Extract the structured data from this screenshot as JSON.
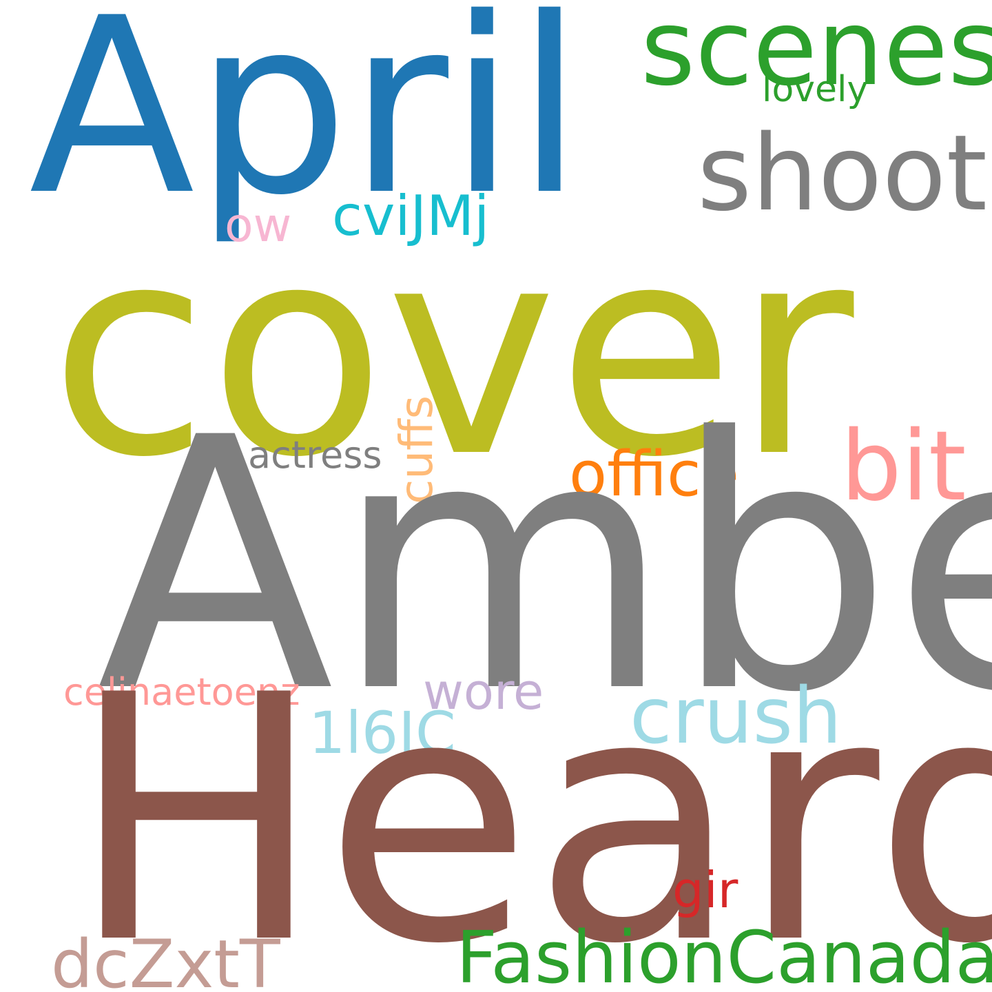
{
  "background": "#ffffff",
  "words": {
    "april": {
      "text": "April",
      "color": "#1f77b4"
    },
    "scenes": {
      "text": "scenes",
      "color": "#2ca02c"
    },
    "lovely": {
      "text": "lovely",
      "color": "#2ca02c"
    },
    "shoot": {
      "text": "shoot",
      "color": "#7f7f7f"
    },
    "cvijmj": {
      "text": "cviJMj",
      "color": "#17becf"
    },
    "ow": {
      "text": "ow",
      "color": "#f7b6d2"
    },
    "cover": {
      "text": "cover",
      "color": "#bcbd22"
    },
    "cuffs": {
      "text": "cuffs",
      "color": "#ffbb78"
    },
    "actress": {
      "text": "actress",
      "color": "#7f7f7f"
    },
    "office": {
      "text": "office",
      "color": "#ff7f0e"
    },
    "bit": {
      "text": "bit",
      "color": "#ff9896"
    },
    "amber": {
      "text": "Amber",
      "color": "#7f7f7f"
    },
    "celina": {
      "text": "celinaetoenz",
      "color": "#ff9896"
    },
    "wore": {
      "text": "wore",
      "color": "#c5b0d5"
    },
    "crush": {
      "text": "crush",
      "color": "#9edae5"
    },
    "116ic": {
      "text": "1l6IC",
      "color": "#9edae5"
    },
    "heard": {
      "text": "Heard",
      "color": "#8c564b"
    },
    "gir": {
      "text": "gir",
      "color": "#d62728"
    },
    "fashion": {
      "text": "FashionCanada",
      "color": "#2ca02c"
    },
    "dczxtt": {
      "text": "dcZxtT",
      "color": "#c49c94"
    }
  }
}
